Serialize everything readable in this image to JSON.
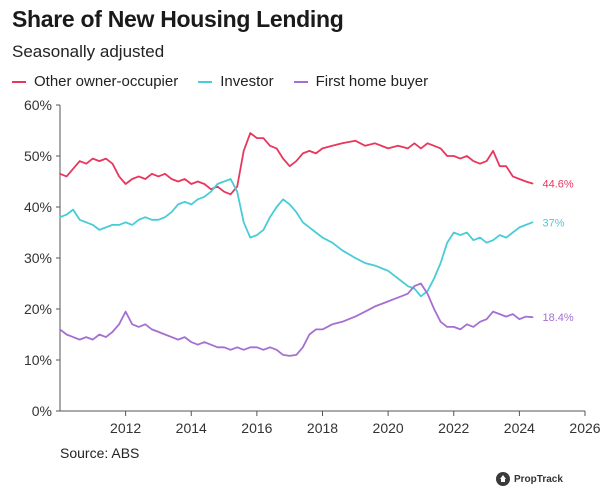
{
  "chart_data": {
    "type": "line",
    "title": "Share of New Housing Lending",
    "subtitle": "Seasonally adjusted",
    "xlabel": "",
    "ylabel": "",
    "xlim": [
      2010.0,
      2026.0
    ],
    "ylim": [
      0,
      60
    ],
    "y_ticks": [
      0,
      10,
      20,
      30,
      40,
      50,
      60
    ],
    "y_tick_labels": [
      "0%",
      "10%",
      "20%",
      "30%",
      "40%",
      "50%",
      "60%"
    ],
    "x_ticks": [
      2012,
      2014,
      2016,
      2018,
      2020,
      2022,
      2024,
      2026
    ],
    "x_tick_labels": [
      "2012",
      "2014",
      "2016",
      "2018",
      "2020",
      "2022",
      "2024",
      "2026"
    ],
    "grid": false,
    "legend_position": "top",
    "source": "Source: ABS",
    "series": [
      {
        "name": "Other owner-occupier",
        "color": "#e8365d",
        "end_label": "44.6%",
        "points": [
          [
            2010.0,
            46.5
          ],
          [
            2010.2,
            46
          ],
          [
            2010.4,
            47.5
          ],
          [
            2010.6,
            49
          ],
          [
            2010.8,
            48.5
          ],
          [
            2011.0,
            49.5
          ],
          [
            2011.2,
            49
          ],
          [
            2011.4,
            49.5
          ],
          [
            2011.6,
            48.5
          ],
          [
            2011.8,
            46
          ],
          [
            2012.0,
            44.5
          ],
          [
            2012.2,
            45.5
          ],
          [
            2012.4,
            46
          ],
          [
            2012.6,
            45.5
          ],
          [
            2012.8,
            46.5
          ],
          [
            2013.0,
            46
          ],
          [
            2013.2,
            46.5
          ],
          [
            2013.4,
            45.5
          ],
          [
            2013.6,
            45
          ],
          [
            2013.8,
            45.5
          ],
          [
            2014.0,
            44.5
          ],
          [
            2014.2,
            45
          ],
          [
            2014.4,
            44.5
          ],
          [
            2014.6,
            43.5
          ],
          [
            2014.8,
            44
          ],
          [
            2015.0,
            43
          ],
          [
            2015.2,
            42.5
          ],
          [
            2015.4,
            44
          ],
          [
            2015.6,
            51
          ],
          [
            2015.8,
            54.5
          ],
          [
            2016.0,
            53.5
          ],
          [
            2016.2,
            53.5
          ],
          [
            2016.4,
            52
          ],
          [
            2016.6,
            51.5
          ],
          [
            2016.8,
            49.5
          ],
          [
            2017.0,
            48
          ],
          [
            2017.2,
            49
          ],
          [
            2017.4,
            50.5
          ],
          [
            2017.6,
            51
          ],
          [
            2017.8,
            50.5
          ],
          [
            2018.0,
            51.5
          ],
          [
            2018.3,
            52
          ],
          [
            2018.6,
            52.5
          ],
          [
            2019.0,
            53
          ],
          [
            2019.3,
            52
          ],
          [
            2019.6,
            52.5
          ],
          [
            2020.0,
            51.5
          ],
          [
            2020.3,
            52
          ],
          [
            2020.6,
            51.5
          ],
          [
            2020.8,
            52.5
          ],
          [
            2021.0,
            51.5
          ],
          [
            2021.2,
            52.5
          ],
          [
            2021.4,
            52
          ],
          [
            2021.6,
            51.5
          ],
          [
            2021.8,
            50
          ],
          [
            2022.0,
            50
          ],
          [
            2022.2,
            49.5
          ],
          [
            2022.4,
            50
          ],
          [
            2022.6,
            49
          ],
          [
            2022.8,
            48.5
          ],
          [
            2023.0,
            49
          ],
          [
            2023.2,
            51
          ],
          [
            2023.4,
            48
          ],
          [
            2023.6,
            48
          ],
          [
            2023.8,
            46
          ],
          [
            2024.0,
            45.5
          ],
          [
            2024.2,
            45
          ],
          [
            2024.4,
            44.6
          ]
        ]
      },
      {
        "name": "Investor",
        "color": "#48ccd6",
        "end_label": "37%",
        "points": [
          [
            2010.0,
            38
          ],
          [
            2010.2,
            38.5
          ],
          [
            2010.4,
            39.5
          ],
          [
            2010.6,
            37.5
          ],
          [
            2010.8,
            37
          ],
          [
            2011.0,
            36.5
          ],
          [
            2011.2,
            35.5
          ],
          [
            2011.4,
            36
          ],
          [
            2011.6,
            36.5
          ],
          [
            2011.8,
            36.5
          ],
          [
            2012.0,
            37
          ],
          [
            2012.2,
            36.5
          ],
          [
            2012.4,
            37.5
          ],
          [
            2012.6,
            38
          ],
          [
            2012.8,
            37.5
          ],
          [
            2013.0,
            37.5
          ],
          [
            2013.2,
            38
          ],
          [
            2013.4,
            39
          ],
          [
            2013.6,
            40.5
          ],
          [
            2013.8,
            41
          ],
          [
            2014.0,
            40.5
          ],
          [
            2014.2,
            41.5
          ],
          [
            2014.4,
            42
          ],
          [
            2014.6,
            43
          ],
          [
            2014.8,
            44.5
          ],
          [
            2015.0,
            45
          ],
          [
            2015.2,
            45.5
          ],
          [
            2015.4,
            43
          ],
          [
            2015.6,
            37
          ],
          [
            2015.8,
            34
          ],
          [
            2016.0,
            34.5
          ],
          [
            2016.2,
            35.5
          ],
          [
            2016.4,
            38
          ],
          [
            2016.6,
            40
          ],
          [
            2016.8,
            41.5
          ],
          [
            2017.0,
            40.5
          ],
          [
            2017.2,
            39
          ],
          [
            2017.4,
            37
          ],
          [
            2017.6,
            36
          ],
          [
            2017.8,
            35
          ],
          [
            2018.0,
            34
          ],
          [
            2018.3,
            33
          ],
          [
            2018.6,
            31.5
          ],
          [
            2019.0,
            30
          ],
          [
            2019.3,
            29
          ],
          [
            2019.6,
            28.5
          ],
          [
            2020.0,
            27.5
          ],
          [
            2020.2,
            26.5
          ],
          [
            2020.4,
            25.5
          ],
          [
            2020.6,
            24.5
          ],
          [
            2020.8,
            24
          ],
          [
            2021.0,
            22.5
          ],
          [
            2021.2,
            23.5
          ],
          [
            2021.4,
            26
          ],
          [
            2021.6,
            29
          ],
          [
            2021.8,
            33
          ],
          [
            2022.0,
            35
          ],
          [
            2022.2,
            34.5
          ],
          [
            2022.4,
            35
          ],
          [
            2022.6,
            33.5
          ],
          [
            2022.8,
            34
          ],
          [
            2023.0,
            33
          ],
          [
            2023.2,
            33.5
          ],
          [
            2023.4,
            34.5
          ],
          [
            2023.6,
            34
          ],
          [
            2023.8,
            35
          ],
          [
            2024.0,
            36
          ],
          [
            2024.2,
            36.5
          ],
          [
            2024.4,
            37
          ]
        ]
      },
      {
        "name": "First home buyer",
        "color": "#a56fd1",
        "end_label": "18.4%",
        "points": [
          [
            2010.0,
            16
          ],
          [
            2010.2,
            15
          ],
          [
            2010.4,
            14.5
          ],
          [
            2010.6,
            14
          ],
          [
            2010.8,
            14.5
          ],
          [
            2011.0,
            14
          ],
          [
            2011.2,
            15
          ],
          [
            2011.4,
            14.5
          ],
          [
            2011.6,
            15.5
          ],
          [
            2011.8,
            17
          ],
          [
            2012.0,
            19.5
          ],
          [
            2012.2,
            17
          ],
          [
            2012.4,
            16.5
          ],
          [
            2012.6,
            17
          ],
          [
            2012.8,
            16
          ],
          [
            2013.0,
            15.5
          ],
          [
            2013.2,
            15
          ],
          [
            2013.4,
            14.5
          ],
          [
            2013.6,
            14
          ],
          [
            2013.8,
            14.5
          ],
          [
            2014.0,
            13.5
          ],
          [
            2014.2,
            13
          ],
          [
            2014.4,
            13.5
          ],
          [
            2014.6,
            13
          ],
          [
            2014.8,
            12.5
          ],
          [
            2015.0,
            12.5
          ],
          [
            2015.2,
            12
          ],
          [
            2015.4,
            12.5
          ],
          [
            2015.6,
            12
          ],
          [
            2015.8,
            12.5
          ],
          [
            2016.0,
            12.5
          ],
          [
            2016.2,
            12
          ],
          [
            2016.4,
            12.5
          ],
          [
            2016.6,
            12
          ],
          [
            2016.8,
            11
          ],
          [
            2017.0,
            10.8
          ],
          [
            2017.2,
            11
          ],
          [
            2017.4,
            12.5
          ],
          [
            2017.6,
            15
          ],
          [
            2017.8,
            16
          ],
          [
            2018.0,
            16
          ],
          [
            2018.3,
            17
          ],
          [
            2018.6,
            17.5
          ],
          [
            2019.0,
            18.5
          ],
          [
            2019.3,
            19.5
          ],
          [
            2019.6,
            20.5
          ],
          [
            2020.0,
            21.5
          ],
          [
            2020.2,
            22
          ],
          [
            2020.4,
            22.5
          ],
          [
            2020.6,
            23
          ],
          [
            2020.8,
            24.5
          ],
          [
            2021.0,
            25
          ],
          [
            2021.2,
            23
          ],
          [
            2021.4,
            20
          ],
          [
            2021.6,
            17.5
          ],
          [
            2021.8,
            16.5
          ],
          [
            2022.0,
            16.5
          ],
          [
            2022.2,
            16
          ],
          [
            2022.4,
            17
          ],
          [
            2022.6,
            16.5
          ],
          [
            2022.8,
            17.5
          ],
          [
            2023.0,
            18
          ],
          [
            2023.2,
            19.5
          ],
          [
            2023.4,
            19
          ],
          [
            2023.6,
            18.5
          ],
          [
            2023.8,
            19
          ],
          [
            2024.0,
            18
          ],
          [
            2024.2,
            18.5
          ],
          [
            2024.4,
            18.4
          ]
        ]
      }
    ]
  },
  "brand": {
    "name": "PropTrack"
  }
}
